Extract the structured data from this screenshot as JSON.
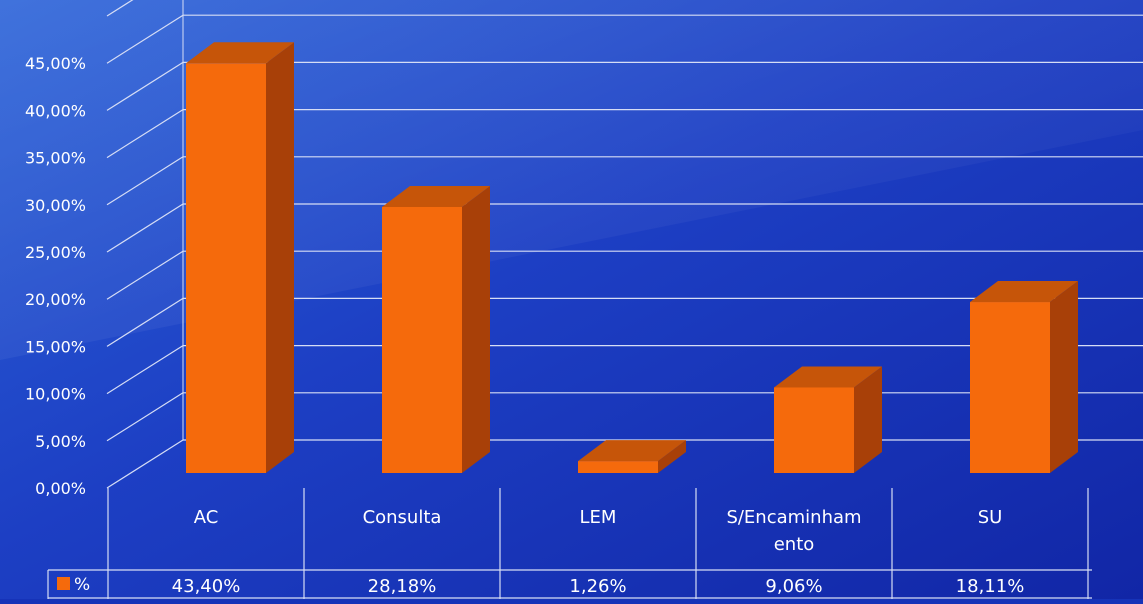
{
  "chart_data": {
    "type": "bar",
    "title": "",
    "xlabel": "",
    "ylabel": "",
    "categories": [
      "AC",
      "Consulta",
      "LEM",
      "S/Encaminhamento",
      "SU"
    ],
    "category_label_lines": [
      [
        "AC"
      ],
      [
        "Consulta"
      ],
      [
        "LEM"
      ],
      [
        "S/Encaminham",
        "ento"
      ],
      [
        "SU"
      ]
    ],
    "series": [
      {
        "name": "%",
        "values": [
          43.4,
          28.18,
          1.26,
          9.06,
          18.11
        ],
        "labels": [
          "43,40%",
          "28,18%",
          "1,26%",
          "9,06%",
          "18,11%"
        ],
        "color": "#f56a0c"
      }
    ],
    "ylim": [
      0,
      50
    ],
    "yticks": [
      0,
      5,
      10,
      15,
      20,
      25,
      30,
      35,
      40,
      45,
      50
    ],
    "ytick_labels": [
      "0,00%",
      "5,00%",
      "10,00%",
      "15,00%",
      "20,00%",
      "25,00%",
      "30,00%",
      "35,00%",
      "40,00%",
      "45,00%",
      ""
    ],
    "grid": true,
    "three_d": true,
    "data_table": true,
    "legend": "data-table-left"
  },
  "colors": {
    "background": "#1633b8",
    "gridline": "#d6ddf5",
    "bar_front": "#f56a0c",
    "bar_side": "#a84008",
    "bar_top": "#c65509",
    "text": "#ffffff"
  }
}
